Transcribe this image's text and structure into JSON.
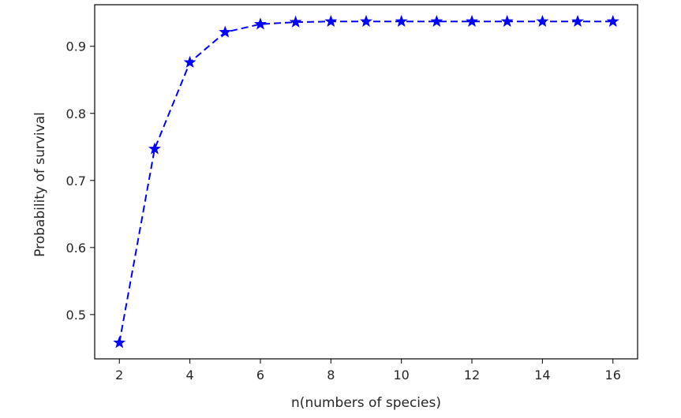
{
  "chart_data": {
    "type": "line",
    "title": "",
    "xlabel": "n(numbers of species)",
    "ylabel": "Probability of survival",
    "x": [
      2,
      3,
      4,
      5,
      6,
      7,
      8,
      9,
      10,
      11,
      12,
      13,
      14,
      15,
      16
    ],
    "series": [
      {
        "values": [
          0.458,
          0.747,
          0.876,
          0.921,
          0.933,
          0.936,
          0.937,
          0.937,
          0.937,
          0.937,
          0.937,
          0.937,
          0.937,
          0.937,
          0.937
        ],
        "color": "#0000ff",
        "line_style": "dashed",
        "marker": "star"
      }
    ],
    "xlim": [
      1.3,
      16.7
    ],
    "ylim": [
      0.434,
      0.962
    ],
    "xticks": [
      2,
      4,
      6,
      8,
      10,
      12,
      14,
      16
    ],
    "yticks": [
      0.5,
      0.6,
      0.7,
      0.8,
      0.9
    ],
    "ytick_labels": [
      "0.5",
      "0.6",
      "0.7",
      "0.8",
      "0.9"
    ],
    "grid": false,
    "legend": "none"
  }
}
